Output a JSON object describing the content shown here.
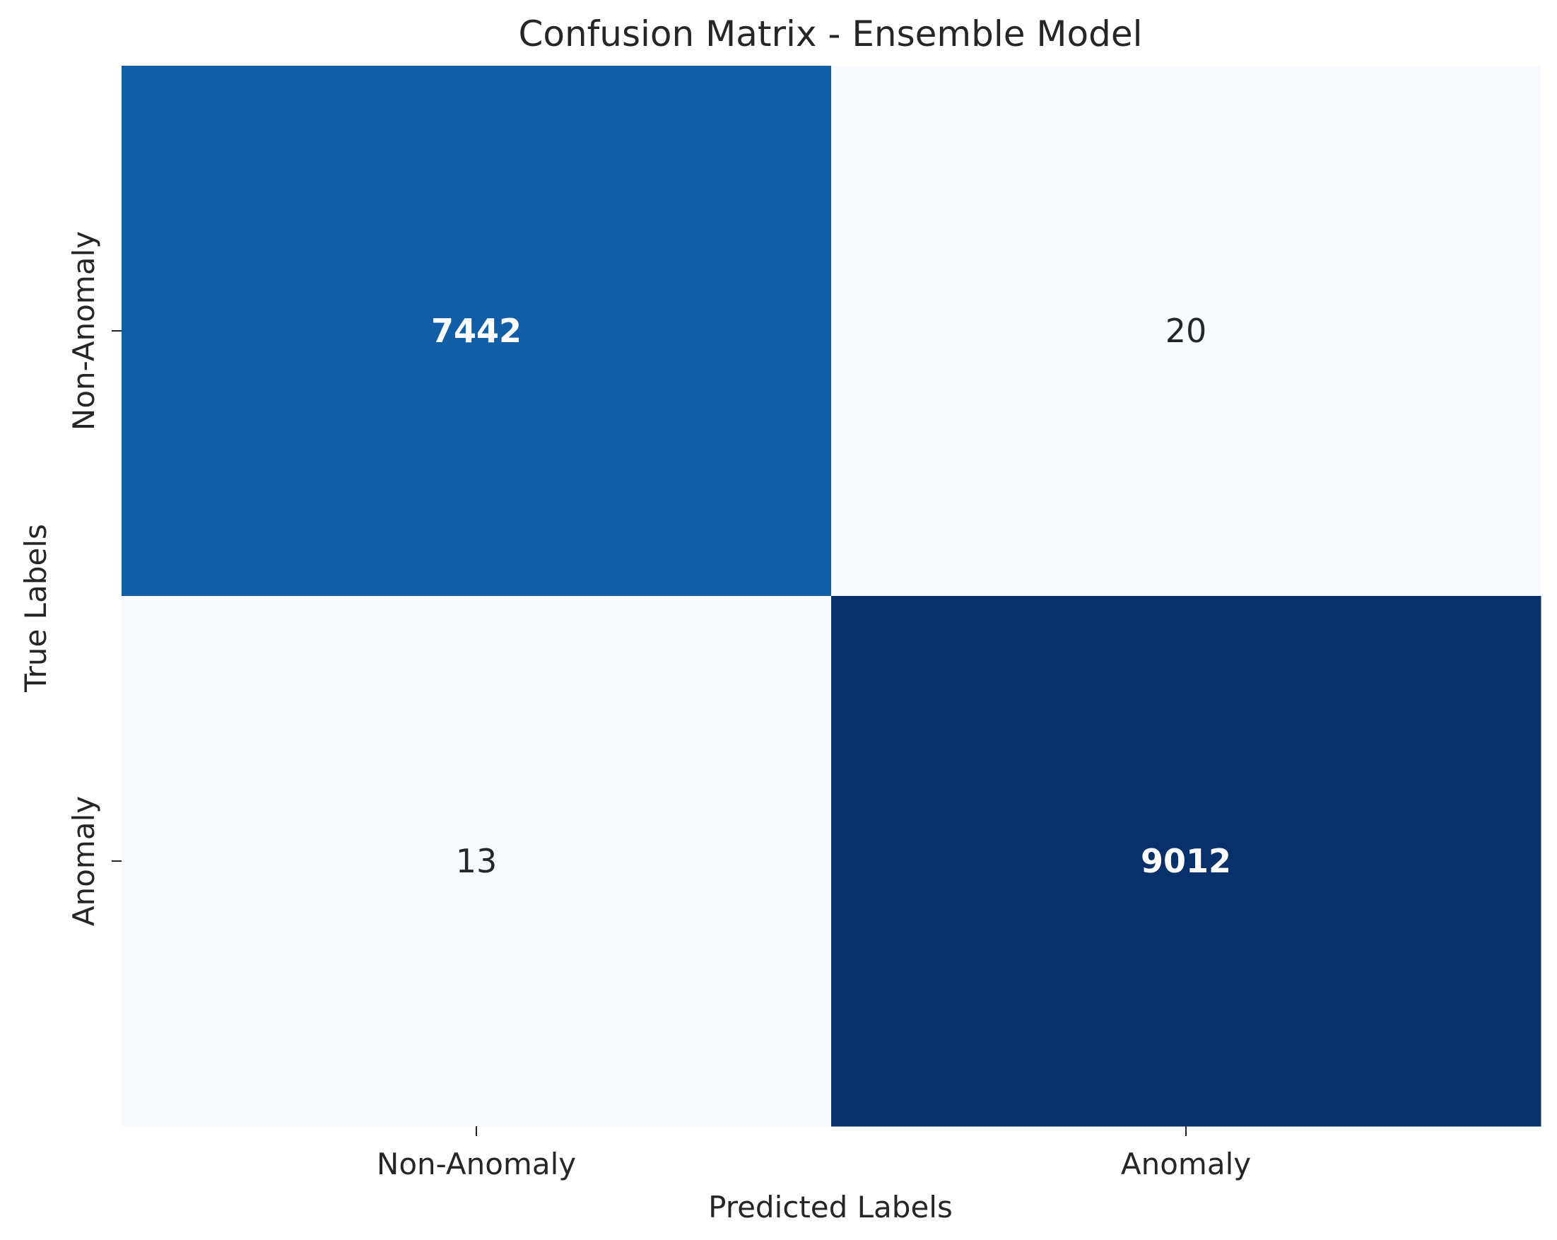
{
  "chart_data": {
    "type": "heatmap",
    "title": "Confusion Matrix - Ensemble Model",
    "xlabel": "Predicted Labels",
    "ylabel": "True Labels",
    "x_categories": [
      "Non-Anomaly",
      "Anomaly"
    ],
    "y_categories": [
      "Non-Anomaly",
      "Anomaly"
    ],
    "values": [
      [
        7442,
        20
      ],
      [
        13,
        9012
      ]
    ],
    "colormap": "Blues",
    "colorbar": false,
    "annotations": true,
    "colors": {
      "low": "#f7fbff",
      "high": "#08306b",
      "light_text": "#ffffff",
      "dark_text": "#262626"
    }
  }
}
